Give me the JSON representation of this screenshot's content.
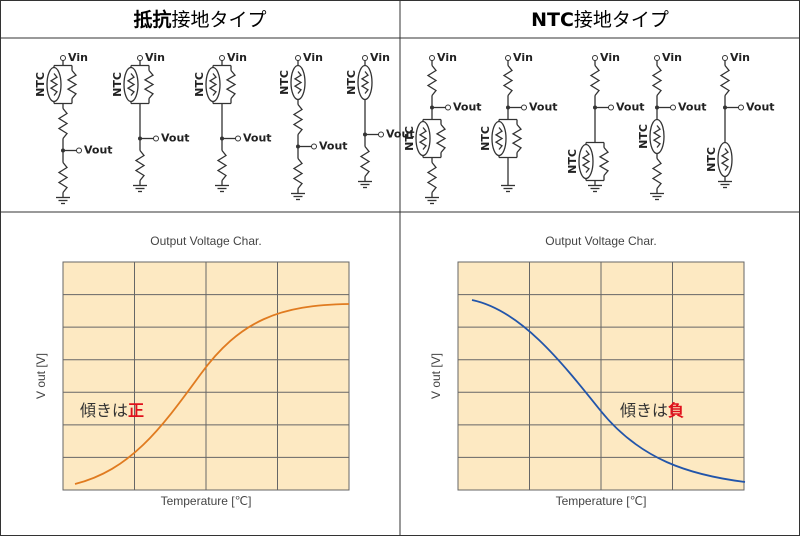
{
  "headers": [
    {
      "bold": "抵抗",
      "rest": "接地タイプ"
    },
    {
      "bold": "NTC",
      "rest": "接地タイプ"
    }
  ],
  "circuit_labels": {
    "vin": "Vin",
    "vout": "Vout",
    "ntc": "NTC"
  },
  "charts": [
    {
      "title": "Output Voltage Char.",
      "y_label": "V out [V]",
      "x_label": "Temperature [℃]",
      "note": "傾きは",
      "sign": "正"
    },
    {
      "title": "Output Voltage Char.",
      "y_label": "V out [V]",
      "x_label": "Temperature [℃]",
      "note": "傾きは",
      "sign": "負"
    }
  ]
}
